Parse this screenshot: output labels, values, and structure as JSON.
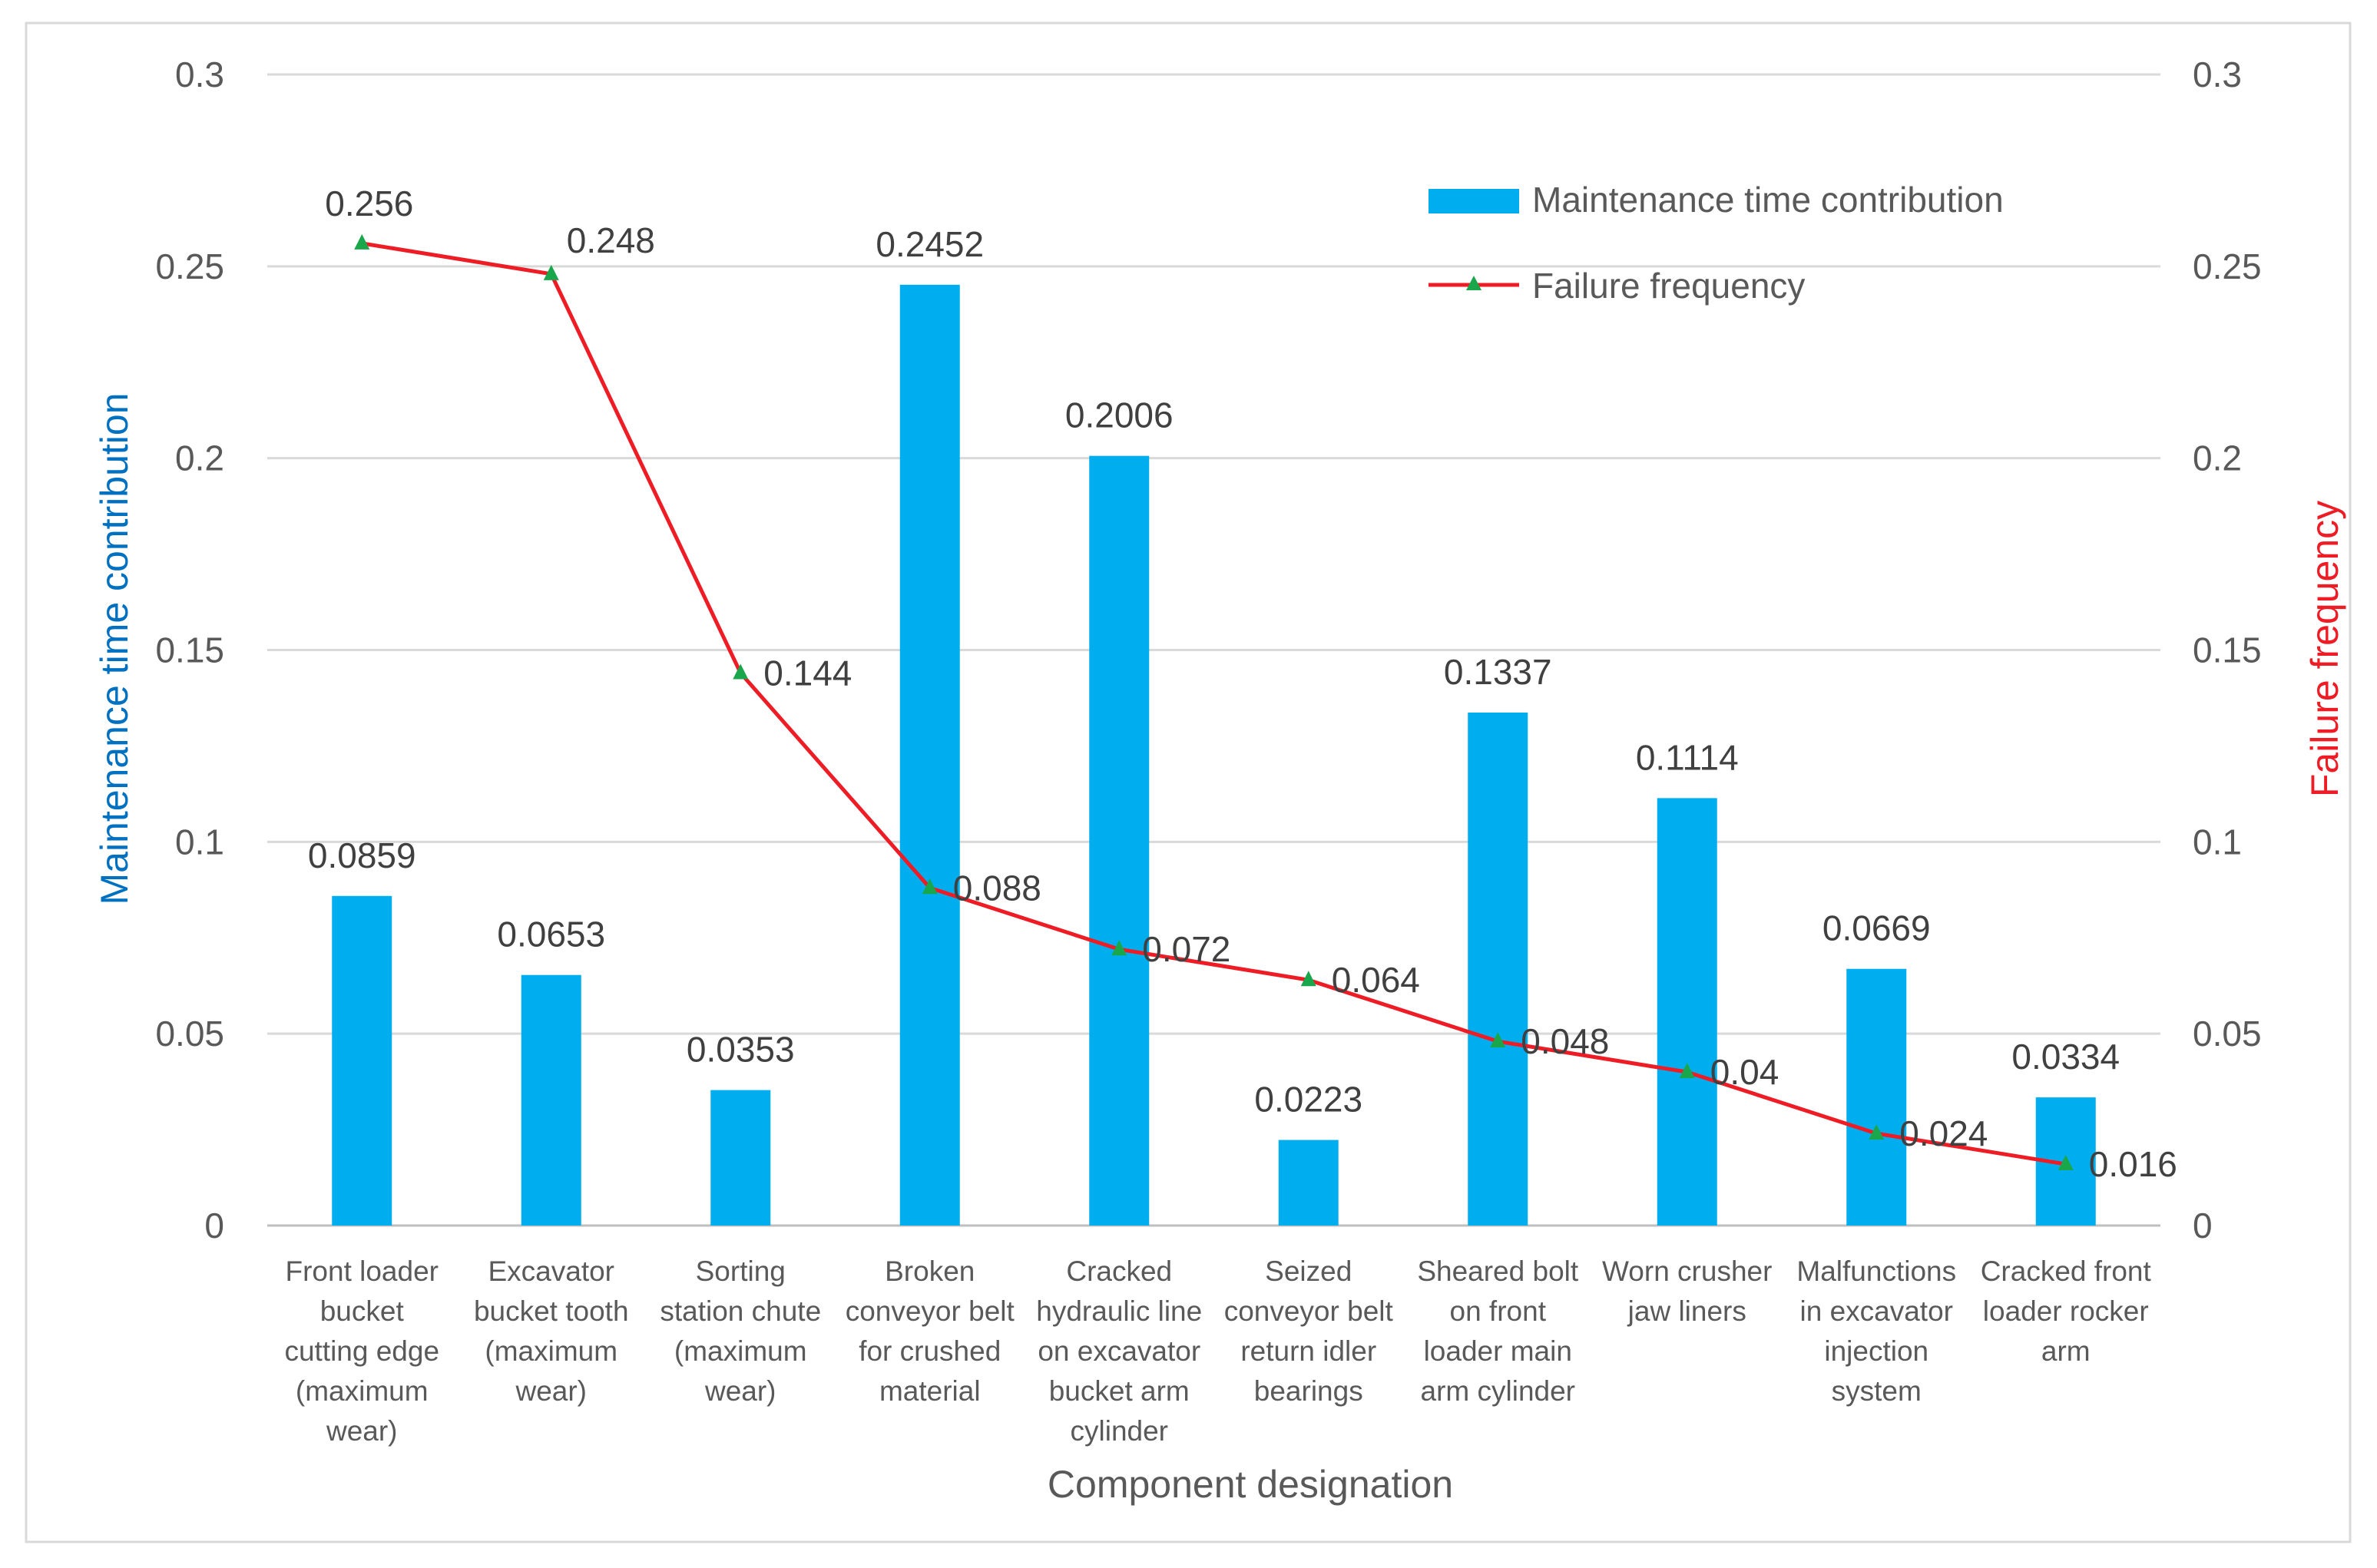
{
  "chart_data": {
    "type": "bar+line",
    "xlabel": "Component designation",
    "ylabel_left": "Maintenance time contribution",
    "ylabel_right": "Failure frequency",
    "ylim_left": [
      0,
      0.3
    ],
    "ylim_right": [
      0,
      0.3
    ],
    "yticks": [
      "0",
      "0.05",
      "0.1",
      "0.15",
      "0.2",
      "0.25",
      "0.3"
    ],
    "grid": true,
    "legend_position": "top-right",
    "categories": [
      [
        "Front loader",
        "bucket",
        "cutting edge",
        "(maximum",
        "wear)"
      ],
      [
        "Excavator",
        "bucket tooth",
        "(maximum",
        "wear)"
      ],
      [
        "Sorting",
        "station chute",
        "(maximum",
        "wear)"
      ],
      [
        "Broken",
        "conveyor belt",
        "for crushed",
        "material"
      ],
      [
        "Cracked",
        "hydraulic line",
        "on excavator",
        "bucket arm",
        "cylinder"
      ],
      [
        "Seized",
        "conveyor belt",
        "return idler",
        "bearings"
      ],
      [
        "Sheared bolt",
        "on front",
        "loader main",
        "arm cylinder"
      ],
      [
        "Worn crusher",
        "jaw liners"
      ],
      [
        "Malfunctions",
        "in excavator",
        "injection",
        "system"
      ],
      [
        "Cracked front",
        "loader rocker",
        "arm"
      ]
    ],
    "series": [
      {
        "name": "Maintenance time contribution",
        "type": "bar",
        "axis": "left",
        "color": "#00AEEF",
        "values": [
          0.0859,
          0.0653,
          0.0353,
          0.2452,
          0.2006,
          0.0223,
          0.1337,
          0.1114,
          0.0669,
          0.0334
        ],
        "labels": [
          "0.0859",
          "0.0653",
          "0.0353",
          "0.2452",
          "0.2006",
          "0.0223",
          "0.1337",
          "0.1114",
          "0.0669",
          "0.0334"
        ]
      },
      {
        "name": "Failure frequency",
        "type": "line",
        "axis": "right",
        "color": "#EE1C25",
        "marker_color": "#1AA64A",
        "values": [
          0.256,
          0.248,
          0.144,
          0.088,
          0.072,
          0.064,
          0.048,
          0.04,
          0.024,
          0.016
        ],
        "labels": [
          "0.256",
          "0.248",
          "0.144",
          "0.088",
          "0.072",
          "0.064",
          "0.048",
          "0.04",
          "0.024",
          "0.016"
        ]
      }
    ]
  }
}
